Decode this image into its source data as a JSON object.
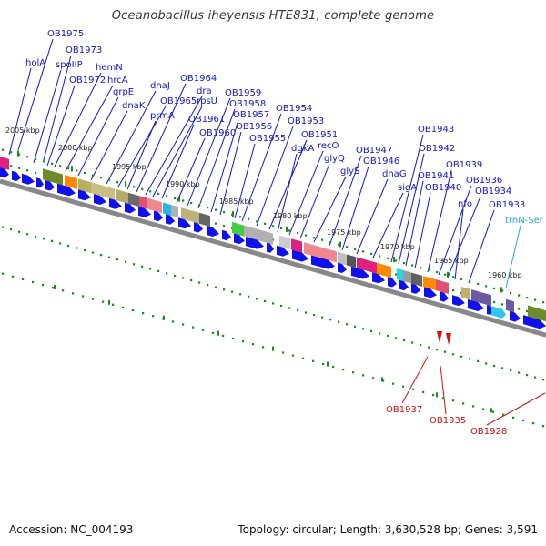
{
  "title": "Oceanobacillus iheyensis HTE831, complete genome",
  "footer": {
    "accession": "Accession: NC_004193",
    "summary": "Topology: circular; Length: 3,630,528 bp; Genes: 3,591"
  },
  "colors": {
    "forward_gene_label": "#1414c8",
    "reverse_gene_label": "#cc1111",
    "rna_label": "#20a8d8",
    "arrow": "#1010ee",
    "tick": "#1a8a1a",
    "backbone": "#888888"
  },
  "kbp_marks": [
    "2005 kbp",
    "2000 kbp",
    "1995 kbp",
    "1990 kbp",
    "1985 kbp",
    "1980 kbp",
    "1975 kbp",
    "1970 kbp",
    "1965 kbp",
    "1960 kbp"
  ],
  "top_labels": [
    "OB1975",
    "OB1973",
    "holA",
    "spoIIP",
    "hemN",
    "OB1972",
    "hrcA",
    "grpE",
    "dnaK",
    "dnaJ",
    "OB1964",
    "dra",
    "rpsU",
    "OB1965",
    "prmA",
    "OB1961",
    "OB1960",
    "OB1959",
    "OB1958",
    "OB1957",
    "OB1956",
    "OB1955",
    "OB1954",
    "OB1953",
    "OB1951",
    "dgkA",
    "recO",
    "glyQ",
    "glyS",
    "OB1947",
    "OB1946",
    "dnaG",
    "sigA",
    "OB1943",
    "OB1942",
    "OB1941",
    "OB1940",
    "OB1939",
    "OB1936",
    "OB1934",
    "nfo",
    "OB1933",
    "trnN-Ser"
  ],
  "bottom_labels": [
    "OB1937",
    "OB1935",
    "OB1928"
  ]
}
